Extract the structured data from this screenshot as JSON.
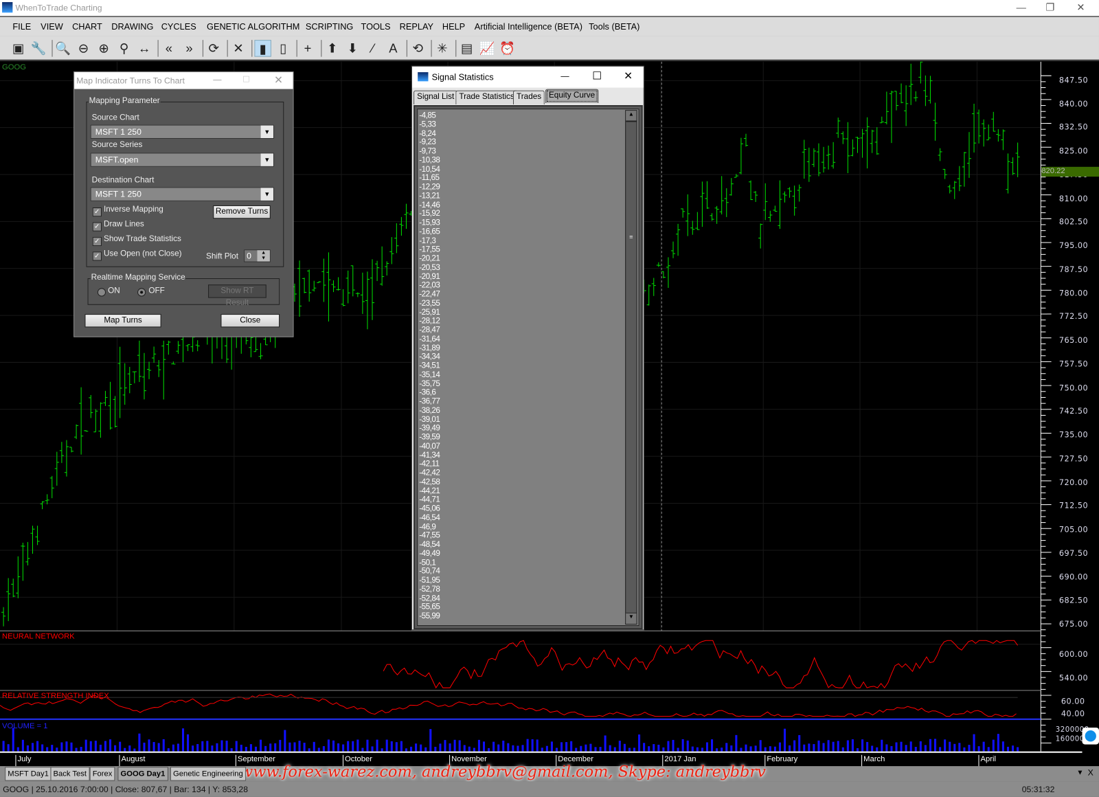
{
  "app": {
    "title": "WhenToTrade Charting",
    "window_controls": [
      "—",
      "❐",
      "✕"
    ]
  },
  "menu": [
    "FILE",
    "VIEW",
    "CHART",
    "DRAWING",
    "CYCLES",
    "GENETIC ALGORITHM",
    "SCRIPTING",
    "TOOLS",
    "REPLAY",
    "HELP",
    "Artificial Intelligence (BETA)",
    "Tools (BETA)"
  ],
  "toolbar": [
    {
      "icon": "new-chart-icon",
      "glyph": "▣"
    },
    {
      "icon": "wrench-icon",
      "glyph": "🔧"
    },
    {
      "sep": true
    },
    {
      "icon": "zoom-reset-icon",
      "glyph": "🔍"
    },
    {
      "icon": "zoom-out-icon",
      "glyph": "⊖"
    },
    {
      "icon": "zoom-in-icon",
      "glyph": "⊕"
    },
    {
      "icon": "zoom-icon",
      "glyph": "⚲"
    },
    {
      "icon": "fit-width-icon",
      "glyph": "↔"
    },
    {
      "sep": true
    },
    {
      "icon": "scroll-back-icon",
      "glyph": "«"
    },
    {
      "icon": "scroll-forward-icon",
      "glyph": "»"
    },
    {
      "sep": true
    },
    {
      "icon": "refresh-selection-icon",
      "glyph": "⟳"
    },
    {
      "sep": true
    },
    {
      "icon": "clear-selection-icon",
      "glyph": "✕"
    },
    {
      "sep": true
    },
    {
      "icon": "battery-full-icon",
      "glyph": "▮",
      "active": true
    },
    {
      "icon": "battery-low-icon",
      "glyph": "▯"
    },
    {
      "sep": true
    },
    {
      "icon": "crosshair-icon",
      "glyph": "+"
    },
    {
      "sep": true
    },
    {
      "icon": "arrow-up-icon",
      "glyph": "⬆"
    },
    {
      "icon": "arrow-down-icon",
      "glyph": "⬇"
    },
    {
      "icon": "line-tool-icon",
      "glyph": "⁄"
    },
    {
      "icon": "text-tool-icon",
      "glyph": "A"
    },
    {
      "sep": true
    },
    {
      "icon": "history-icon",
      "glyph": "⟲"
    },
    {
      "sep": true
    },
    {
      "icon": "spider-icon",
      "glyph": "✳"
    },
    {
      "sep": true
    },
    {
      "icon": "indicator-window-icon",
      "glyph": "▤"
    },
    {
      "icon": "chart-lines-icon",
      "glyph": "📈"
    },
    {
      "icon": "alarm-clock-icon",
      "glyph": "⏰"
    }
  ],
  "chart": {
    "symbol": "GOOG",
    "price_axis": [
      "847.50",
      "840.00",
      "832.50",
      "825.00",
      "817.50",
      "810.00",
      "802.50",
      "795.00",
      "787.50",
      "780.00",
      "772.50",
      "765.00",
      "757.50",
      "750.00",
      "742.50",
      "735.00",
      "727.50",
      "720.00",
      "712.50",
      "705.00",
      "697.50",
      "690.00",
      "682.50",
      "675.00"
    ],
    "price_range": [
      675,
      847.5
    ],
    "last_price": "820.22",
    "price_keypoints": [
      [
        0,
        680
      ],
      [
        0.017,
        690
      ],
      [
        0.04,
        712
      ],
      [
        0.07,
        735
      ],
      [
        0.1,
        746
      ],
      [
        0.2,
        768
      ],
      [
        0.26,
        762
      ],
      [
        0.3,
        785
      ],
      [
        0.36,
        778
      ],
      [
        0.4,
        805
      ],
      [
        0.63,
        780
      ],
      [
        0.66,
        792
      ],
      [
        0.67,
        805
      ],
      [
        0.72,
        810
      ],
      [
        0.73,
        830
      ],
      [
        0.745,
        800
      ],
      [
        0.77,
        808
      ],
      [
        0.79,
        818
      ],
      [
        0.82,
        830
      ],
      [
        0.845,
        825
      ],
      [
        0.87,
        835
      ],
      [
        0.9,
        845
      ],
      [
        0.915,
        848
      ],
      [
        0.925,
        820
      ],
      [
        0.94,
        810
      ],
      [
        0.955,
        830
      ],
      [
        0.975,
        835
      ],
      [
        0.99,
        822
      ],
      [
        1,
        820
      ]
    ],
    "neural_network": {
      "label": "NEURAL NETWORK",
      "axis": [
        "600.00",
        "540.00"
      ]
    },
    "rsi": {
      "label": "RELATIVE STRENGTH INDEX",
      "axis": [
        "60.00",
        "40.00"
      ]
    },
    "volume": {
      "label": "VOLUME = 1",
      "axis": [
        "3200000",
        "1600000"
      ]
    },
    "time_axis": [
      "July",
      "August",
      "September",
      "October",
      "November",
      "December",
      "2017 Jan",
      "February",
      "March",
      "April"
    ],
    "colors": {
      "bars": "#00e000",
      "nn": "#ff0000",
      "rsi": "#ff0000",
      "volume": "#1010ff",
      "last_price_bg": "#3a6a00"
    }
  },
  "map_dialog": {
    "title": "Map Indicator Turns To Chart",
    "group": "Mapping Parameter",
    "source_chart_label": "Source Chart",
    "source_chart": "MSFT  1 250",
    "source_series_label": "Source Series",
    "source_series": "MSFT.open",
    "dest_chart_label": "Destination Chart",
    "dest_chart": "MSFT  1 250",
    "checks": [
      {
        "label": "Inverse Mapping",
        "checked": true
      },
      {
        "label": "Draw Lines",
        "checked": true
      },
      {
        "label": "Show Trade Statistics",
        "checked": true
      },
      {
        "label": "Use Open (not Close)",
        "checked": true
      }
    ],
    "remove_turns": "Remove Turns",
    "shift_plot_label": "Shift Plot",
    "shift_plot": "0",
    "rt_group": "Realtime Mapping Service",
    "on": "ON",
    "off": "OFF",
    "rt_selected": "OFF",
    "show_rt": "Show RT Result",
    "map_turns": "Map Turns",
    "close": "Close"
  },
  "signal_dialog": {
    "title": "Signal Statistics",
    "tabs": [
      "Signal List",
      "Trade Statistics",
      "Trades",
      "Equity Curve"
    ],
    "active_tab": "Equity Curve",
    "values": [
      "-4,85",
      "-5,33",
      "-8,24",
      "-9,23",
      "-9,73",
      "-10,38",
      "-10,54",
      "-11,65",
      "-12,29",
      "-13,21",
      "-14,46",
      "-15,92",
      "-15,93",
      "-16,65",
      "-17,3",
      "-17,55",
      "-20,21",
      "-20,53",
      "-20,91",
      "-22,03",
      "-22,47",
      "-23,55",
      "-25,91",
      "-28,12",
      "-28,47",
      "-31,64",
      "-31,89",
      "-34,34",
      "-34,51",
      "-35,14",
      "-35,75",
      "-36,6",
      "-36,77",
      "-38,26",
      "-39,01",
      "-39,49",
      "-39,59",
      "-40,07",
      "-41,34",
      "-42,11",
      "-42,42",
      "-42,58",
      "-44,21",
      "-44,71",
      "-45,06",
      "-46,54",
      "-46,9",
      "-47,55",
      "-48,54",
      "-49,49",
      "-50,1",
      "-50,74",
      "-51,95",
      "-52,78",
      "-52,84",
      "-55,65",
      "-55,99"
    ]
  },
  "chart_tabs": [
    "MSFT Day1",
    "Back Test",
    "Forex",
    "GOOG Day1",
    "Genetic Engineering"
  ],
  "active_chart_tab": "GOOG Day1",
  "watermark": "www.forex-warez.com, andreybbrv@gmail.com, Skype: andreybbrv",
  "status": {
    "text": "GOOG | 25.10.2016 7:00:00 | Close: 807,67 | Bar: 134 | Y: 853,28",
    "time": "05:31:32"
  }
}
